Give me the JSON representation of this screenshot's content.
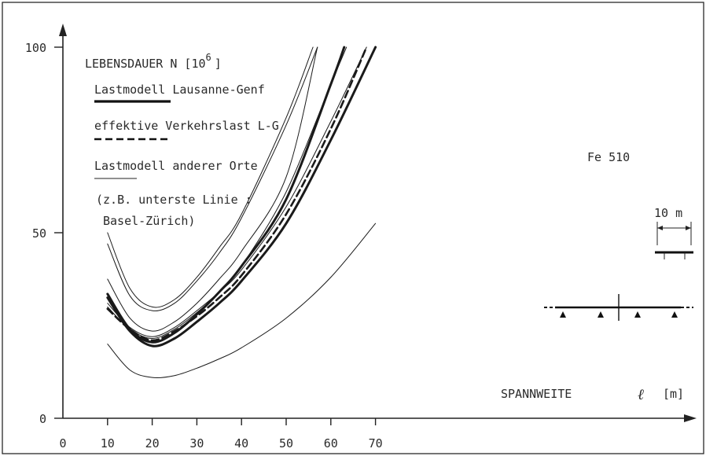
{
  "chart_data": {
    "type": "line",
    "title": "LEBENSDAUER  N  [10",
    "title_exp": "6",
    "title_close": "]",
    "xlabel": "SPANNWEITE",
    "xlabel_symbol": "ℓ",
    "xlabel_unit": "[m]",
    "ylabel": "",
    "xlim": [
      0,
      80
    ],
    "ylim": [
      0,
      100
    ],
    "x_ticks": [
      "0",
      "10",
      "20",
      "30",
      "40",
      "50",
      "60",
      "70"
    ],
    "y_ticks": [
      "0",
      "50",
      "100"
    ],
    "grid": false,
    "legend": [
      {
        "label": "Lastmodell Lausanne-Genf",
        "style": "thick"
      },
      {
        "label": "effektive Verkehrslast L-G",
        "style": "dashed"
      },
      {
        "label": "Lastmodell anderer Orte",
        "style": "thin"
      }
    ],
    "legend_note": [
      "(z.B. unterste Linie :",
      "Basel-Zürich)"
    ],
    "annotations": {
      "material": "Fe 510",
      "span": "10 m"
    },
    "series": [
      {
        "style": "thick",
        "x": [
          10,
          15,
          20,
          25,
          30,
          35,
          40,
          50,
          60,
          70
        ],
        "y": [
          32.5,
          23.5,
          19.5,
          21.5,
          26,
          31,
          37,
          52.5,
          75,
          100
        ]
      },
      {
        "style": "thick",
        "x": [
          10,
          15,
          20,
          25,
          30,
          35,
          40,
          50,
          60,
          63
        ],
        "y": [
          33.5,
          24,
          20.5,
          23,
          28,
          34,
          41,
          59,
          90,
          100
        ]
      },
      {
        "style": "dashed",
        "x": [
          10,
          15,
          20,
          25,
          30,
          35,
          40,
          50,
          60,
          68
        ],
        "y": [
          29.5,
          24,
          21,
          23.5,
          27.5,
          32.5,
          38.5,
          55,
          78,
          100
        ]
      },
      {
        "style": "thin",
        "x": [
          10,
          15,
          20,
          25,
          30,
          35,
          40,
          50,
          60,
          68
        ],
        "y": [
          31,
          24.5,
          22,
          24.5,
          29,
          34,
          40,
          57,
          80,
          100
        ]
      },
      {
        "style": "thin",
        "x": [
          10,
          15,
          20,
          25,
          30,
          35,
          40,
          50,
          60,
          63.5
        ],
        "y": [
          30,
          24,
          21.5,
          24,
          28.5,
          34,
          41,
          61,
          90,
          100
        ]
      },
      {
        "style": "thin",
        "x": [
          10,
          15,
          20,
          25,
          30,
          35,
          40,
          50,
          57
        ],
        "y": [
          37.5,
          27,
          23.5,
          26,
          31,
          37.5,
          45,
          65,
          100
        ]
      },
      {
        "style": "thin",
        "x": [
          10,
          15,
          20,
          25,
          30,
          35,
          40,
          50,
          57
        ],
        "y": [
          47,
          33,
          29,
          31,
          37,
          44.5,
          54,
          79,
          100
        ]
      },
      {
        "style": "thin",
        "x": [
          10,
          15,
          20,
          25,
          30,
          35,
          40,
          50,
          56
        ],
        "y": [
          50,
          35,
          30,
          32,
          38,
          46,
          55,
          81,
          100
        ]
      },
      {
        "style": "thin",
        "x": [
          10,
          15,
          20,
          25,
          30,
          35,
          40,
          50,
          60,
          70
        ],
        "y": [
          20,
          13,
          11,
          11.5,
          13.5,
          16,
          19,
          27,
          38,
          52.5
        ]
      }
    ]
  }
}
